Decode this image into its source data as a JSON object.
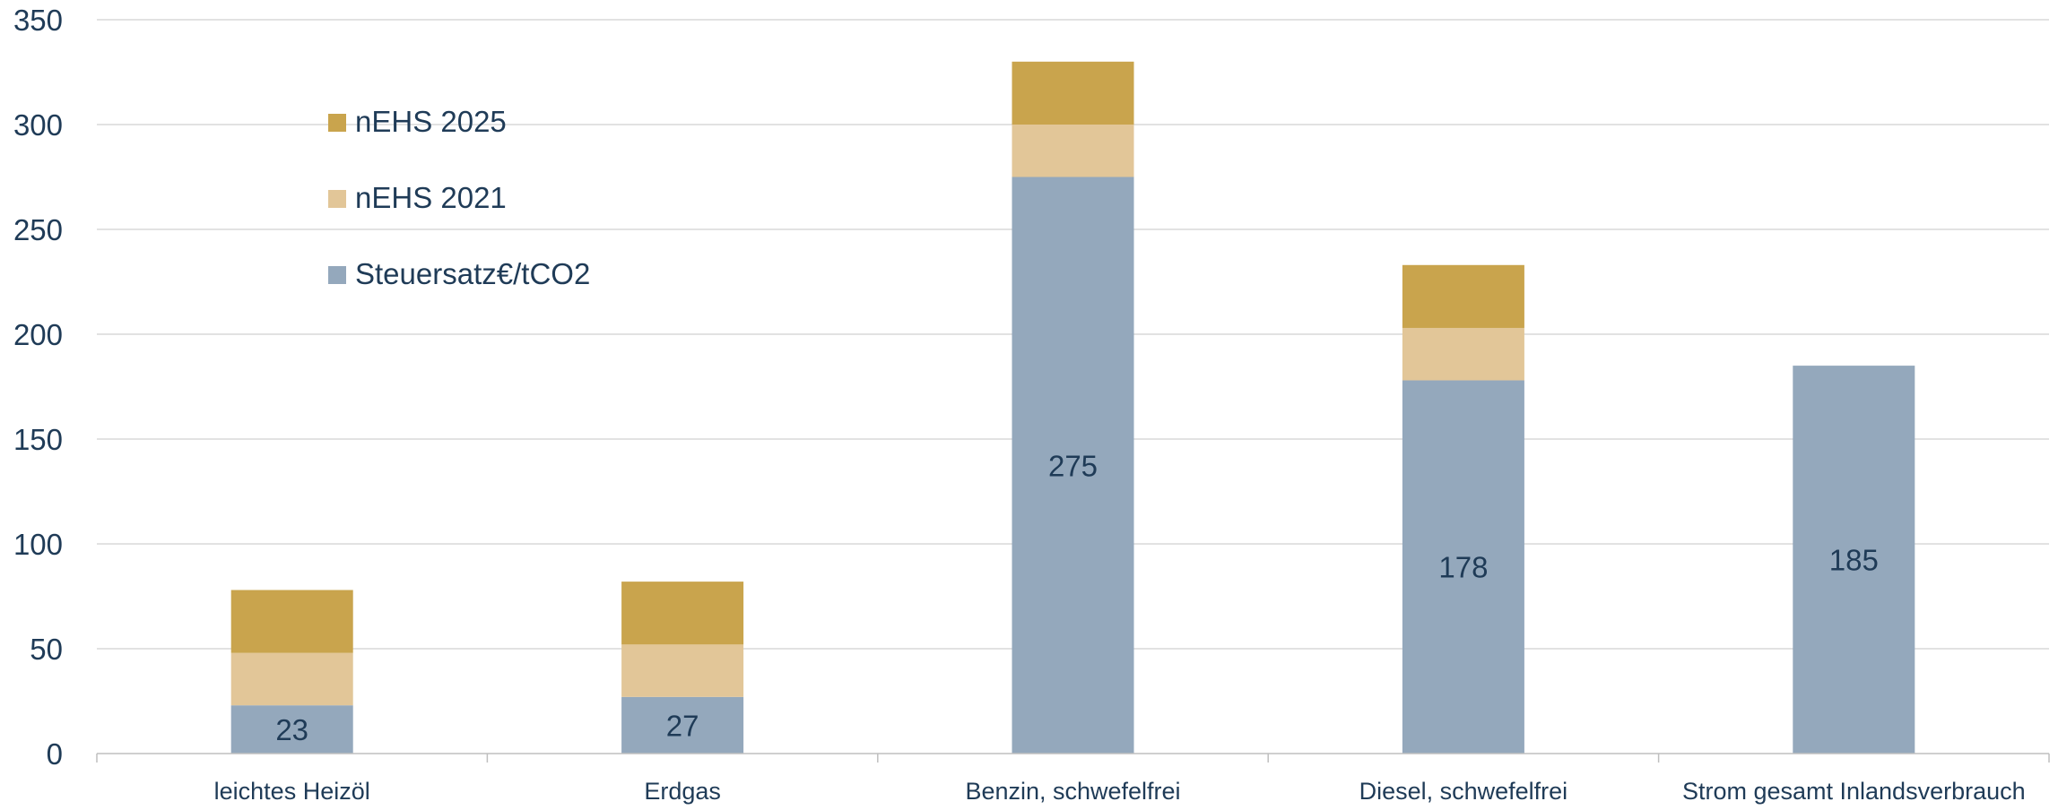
{
  "chart_data": {
    "type": "bar",
    "stacked": true,
    "categories": [
      "leichtes Heizöl",
      "Erdgas",
      "Benzin, schwefelfrei",
      "Diesel, schwefelfrei",
      "Strom gesamt Inlandsverbrauch"
    ],
    "series": [
      {
        "name": "Steuersatz€/tCO2",
        "values": [
          23,
          27,
          275,
          178,
          185
        ],
        "color": "#94a8bc",
        "show_labels": true
      },
      {
        "name": "nEHS 2021",
        "values": [
          25,
          25,
          25,
          25,
          0
        ],
        "color": "#e2c698",
        "show_labels": false
      },
      {
        "name": "nEHS 2025",
        "values": [
          30,
          30,
          30,
          30,
          0
        ],
        "color": "#c9a44d",
        "show_labels": false
      }
    ],
    "legend_order": [
      "nEHS 2025",
      "nEHS 2021",
      "Steuersatz€/tCO2"
    ],
    "legend_position": "top-left",
    "yticks": [
      0,
      50,
      100,
      150,
      200,
      250,
      300,
      350
    ],
    "ylim": [
      0,
      350
    ],
    "grid": true,
    "title": "",
    "xlabel": "",
    "ylabel": ""
  }
}
